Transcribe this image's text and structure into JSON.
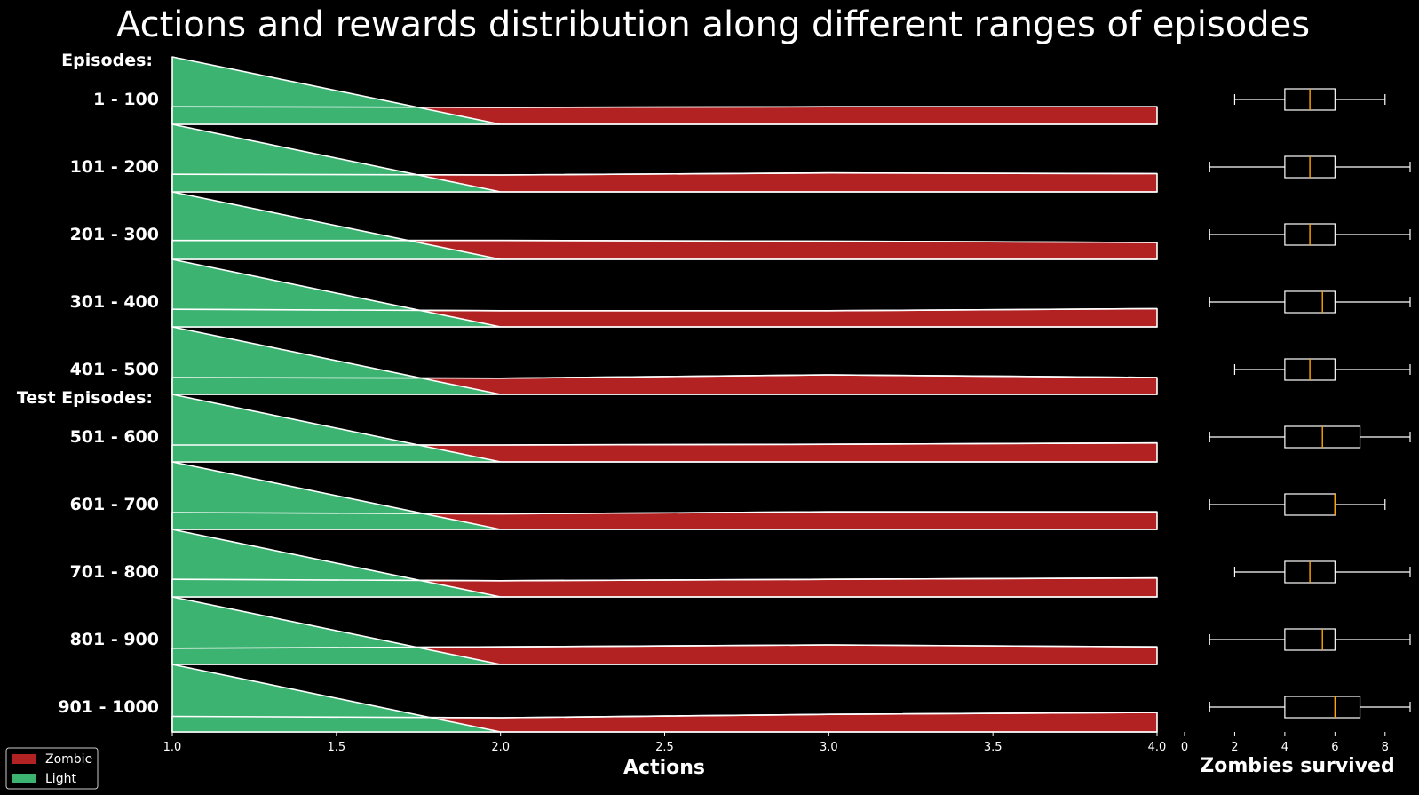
{
  "chart_data": {
    "type": "area",
    "title": "Actions and rewards distribution along different ranges of episodes",
    "group_labels": [
      "Episodes:",
      "Test Episodes:"
    ],
    "ridge_panel": {
      "xlabel": "Actions",
      "xlim": [
        1.0,
        4.0
      ],
      "x_ticks": [
        "1.0",
        "1.5",
        "2.0",
        "2.5",
        "3.0",
        "3.5",
        "4.0"
      ],
      "x": [
        1.0,
        2.0,
        3.0,
        4.0
      ],
      "ylim": [
        0,
        1
      ]
    },
    "box_panel": {
      "xlabel": "Zombies survived",
      "xlim": [
        0,
        9
      ],
      "x_ticks": [
        "0",
        "2",
        "4",
        "6",
        "8"
      ]
    },
    "legend": {
      "position": "lower-left",
      "items": [
        {
          "label": "Zombie",
          "color": "#B22222"
        },
        {
          "label": "Light",
          "color": "#3CB371"
        }
      ]
    },
    "colors": {
      "zombie": "#B22222",
      "light": "#3CB371",
      "median": "#FFA500",
      "line": "#FFFFFF",
      "background": "#000000"
    },
    "rows": [
      {
        "label": "1 - 100",
        "light": [
          1.0,
          0.0,
          0.0,
          0.0
        ],
        "zombie": [
          0.26,
          0.25,
          0.26,
          0.26
        ],
        "box": {
          "whislo": 2,
          "q1": 4,
          "med": 5,
          "q3": 6,
          "whishi": 8
        }
      },
      {
        "label": "101 - 200",
        "light": [
          1.0,
          0.0,
          0.0,
          0.0
        ],
        "zombie": [
          0.26,
          0.25,
          0.28,
          0.27
        ],
        "box": {
          "whislo": 1,
          "q1": 4,
          "med": 5,
          "q3": 6,
          "whishi": 9
        }
      },
      {
        "label": "201 - 300",
        "light": [
          1.0,
          0.0,
          0.0,
          0.0
        ],
        "zombie": [
          0.28,
          0.28,
          0.27,
          0.25
        ],
        "box": {
          "whislo": 1,
          "q1": 4,
          "med": 5,
          "q3": 6,
          "whishi": 9
        }
      },
      {
        "label": "301 - 400",
        "light": [
          1.0,
          0.0,
          0.0,
          0.0
        ],
        "zombie": [
          0.26,
          0.24,
          0.24,
          0.27
        ],
        "box": {
          "whislo": 1,
          "q1": 4,
          "med": 5.5,
          "q3": 6,
          "whishi": 9
        }
      },
      {
        "label": "401 - 500",
        "light": [
          1.0,
          0.0,
          0.0,
          0.0
        ],
        "zombie": [
          0.25,
          0.24,
          0.29,
          0.25
        ],
        "box": {
          "whislo": 2,
          "q1": 4,
          "med": 5,
          "q3": 6,
          "whishi": 9
        }
      },
      {
        "label": "501 - 600",
        "light": [
          1.0,
          0.0,
          0.0,
          0.0
        ],
        "zombie": [
          0.25,
          0.25,
          0.26,
          0.28
        ],
        "box": {
          "whislo": 1,
          "q1": 4,
          "med": 5.5,
          "q3": 7,
          "whishi": 9
        }
      },
      {
        "label": "601 - 700",
        "light": [
          1.0,
          0.0,
          0.0,
          0.0
        ],
        "zombie": [
          0.25,
          0.23,
          0.26,
          0.26
        ],
        "box": {
          "whislo": 1,
          "q1": 4,
          "med": 6,
          "q3": 6,
          "whishi": 8
        }
      },
      {
        "label": "701 - 800",
        "light": [
          1.0,
          0.0,
          0.0,
          0.0
        ],
        "zombie": [
          0.26,
          0.24,
          0.26,
          0.28
        ],
        "box": {
          "whislo": 2,
          "q1": 4,
          "med": 5,
          "q3": 6,
          "whishi": 9
        }
      },
      {
        "label": "801 - 900",
        "light": [
          1.0,
          0.0,
          0.0,
          0.0
        ],
        "zombie": [
          0.24,
          0.26,
          0.29,
          0.26
        ],
        "box": {
          "whislo": 1,
          "q1": 4,
          "med": 5.5,
          "q3": 6,
          "whishi": 9
        }
      },
      {
        "label": "901 - 1000",
        "light": [
          1.0,
          0.0,
          0.0,
          0.0
        ],
        "zombie": [
          0.23,
          0.21,
          0.26,
          0.29
        ],
        "box": {
          "whislo": 1,
          "q1": 4,
          "med": 6,
          "q3": 7,
          "whishi": 9
        }
      }
    ]
  }
}
